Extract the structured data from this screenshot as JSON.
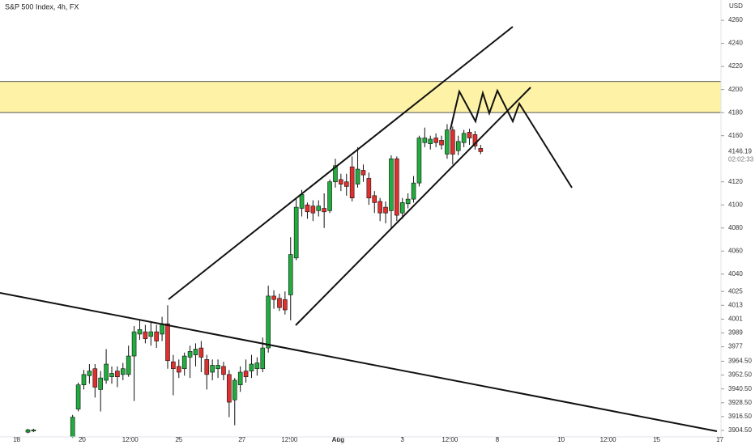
{
  "chart_data": {
    "type": "candlestick",
    "title": "S&P 500 Index, 4h, FX",
    "currency": "USD",
    "last_price": 4146.19,
    "countdown": "02:02:33",
    "colors": {
      "up": "#22ab3e",
      "down": "#e0302d",
      "zone": "#fdf2a6"
    },
    "zone": [
      4180,
      4207
    ],
    "ylim": [
      3898.9,
      4277.6
    ],
    "yticks": [
      4260,
      4240,
      4220,
      4200,
      4180,
      4160,
      4120,
      4100,
      4080,
      4060,
      4040,
      4025,
      4013,
      4001,
      3989,
      3977,
      {
        "value": 3964.5,
        "label": "3964.50"
      },
      {
        "value": 3952.5,
        "label": "3952.50"
      },
      {
        "value": 3940.5,
        "label": "3940.50"
      },
      {
        "value": 3928.5,
        "label": "3928.50"
      },
      {
        "value": 3916.5,
        "label": "3916.50"
      },
      {
        "value": 3904.5,
        "label": "3904.50"
      }
    ],
    "xlim": [
      -3,
      126
    ],
    "xticks": [
      {
        "value": 0,
        "label": "18"
      },
      {
        "value": 11.7,
        "label": "20"
      },
      {
        "value": 20.3,
        "label": "12:00"
      },
      {
        "value": 29,
        "label": "25"
      },
      {
        "value": 40.3,
        "label": "27"
      },
      {
        "value": 48.8,
        "label": "12:00"
      },
      {
        "value": 57.5,
        "label": "Aug"
      },
      {
        "value": 69,
        "label": "3"
      },
      {
        "value": 77.5,
        "label": "12:00"
      },
      {
        "value": 86,
        "label": "8"
      },
      {
        "value": 97.4,
        "label": "10"
      },
      {
        "value": 105.8,
        "label": "12:00"
      },
      {
        "value": 114.5,
        "label": "15"
      },
      {
        "value": 125.8,
        "label": "17"
      }
    ],
    "x": [
      2,
      3,
      10,
      11,
      12,
      13,
      14,
      15,
      16,
      17,
      18,
      19,
      20,
      21,
      22,
      23,
      24,
      25,
      26,
      27,
      28,
      29,
      30,
      31,
      32,
      33,
      34,
      35,
      36,
      37,
      38,
      39,
      40,
      41,
      42,
      43,
      44,
      45,
      46,
      47,
      48,
      49,
      50,
      51,
      52,
      53,
      54,
      55,
      56,
      57,
      58,
      59,
      60,
      61,
      62,
      63,
      64,
      65,
      66,
      67,
      68,
      69,
      70,
      71,
      72,
      73,
      74,
      75,
      76,
      77,
      78,
      79,
      80,
      81,
      82,
      83
    ],
    "open": [
      3903,
      3904,
      3899,
      3923,
      3944,
      3952,
      3958,
      3940,
      3948,
      3951,
      3956,
      3953,
      3953,
      3969,
      3988,
      3990,
      3986,
      3990,
      3988,
      3997,
      3964,
      3960,
      3958,
      3968,
      3970,
      3976,
      3966,
      3955,
      3958,
      3960,
      3953,
      3931,
      3944,
      3956,
      3956,
      3958,
      3958,
      3976,
      4021,
      4019,
      4018,
      4022,
      4054,
      4097,
      4100,
      4099,
      4095,
      4097,
      4095,
      4120,
      4122,
      4120,
      4133,
      4118,
      4130,
      4123,
      4108,
      4103,
      4098,
      4095,
      4140,
      4093,
      4101,
      4105,
      4119,
      4154,
      4153,
      4158,
      4156,
      4144,
      4165,
      4147,
      4154,
      4163,
      4161,
      4149
    ],
    "high": [
      3906,
      3906,
      3918,
      3946,
      3957,
      3962,
      3962,
      3956,
      3975,
      3960,
      3960,
      3963,
      3978,
      3995,
      4001,
      3996,
      3998,
      3996,
      4003,
      4013,
      3970,
      3966,
      3972,
      3978,
      3980,
      3982,
      3970,
      3966,
      3966,
      3964,
      3957,
      3950,
      3960,
      3966,
      3970,
      3968,
      3985,
      4030,
      4026,
      4023,
      4025,
      4072,
      4105,
      4113,
      4102,
      4104,
      4104,
      4110,
      4122,
      4140,
      4127,
      4127,
      4142,
      4150,
      4135,
      4128,
      4112,
      4106,
      4103,
      4143,
      4142,
      4106,
      4110,
      4125,
      4160,
      4167,
      4160,
      4162,
      4160,
      4170,
      4168,
      4160,
      4165,
      4166,
      4164,
      4152
    ],
    "low": [
      3902,
      3903,
      3898,
      3921,
      3940,
      3945,
      3933,
      3921,
      3945,
      3945,
      3942,
      3948,
      3951,
      3930,
      3983,
      3980,
      3978,
      3976,
      3982,
      3958,
      3935,
      3950,
      3952,
      3950,
      3960,
      3955,
      3940,
      3948,
      3950,
      3948,
      3916,
      3909,
      3938,
      3946,
      3950,
      3952,
      3955,
      3972,
      4010,
      4008,
      4005,
      4000,
      4052,
      4090,
      4088,
      4086,
      4090,
      4080,
      4093,
      4115,
      4112,
      4108,
      4103,
      4115,
      4120,
      4100,
      4093,
      4086,
      4084,
      4080,
      4086,
      4088,
      4097,
      4102,
      4116,
      4150,
      4148,
      4150,
      4148,
      4140,
      4135,
      4143,
      4150,
      4152,
      4148,
      4144
    ],
    "close": [
      3905,
      3905,
      3916,
      3944,
      3953,
      3956,
      3942,
      3950,
      3962,
      3954,
      3951,
      3958,
      3969,
      3990,
      3992,
      3984,
      3990,
      3982,
      3997,
      3965,
      3958,
      3955,
      3969,
      3973,
      3975,
      3968,
      3953,
      3961,
      3961,
      3953,
      3929,
      3948,
      3955,
      3951,
      3962,
      3963,
      3976,
      4021,
      4018,
      4011,
      4009,
      4057,
      4098,
      4109,
      4094,
      4093,
      4099,
      4094,
      4120,
      4134,
      4118,
      4116,
      4106,
      4131,
      4126,
      4106,
      4102,
      4093,
      4093,
      4140,
      4091,
      4102,
      4105,
      4119,
      4158,
      4158,
      4157,
      4154,
      4152,
      4165,
      4144,
      4155,
      4162,
      4158,
      4151,
      4146.19
    ]
  }
}
